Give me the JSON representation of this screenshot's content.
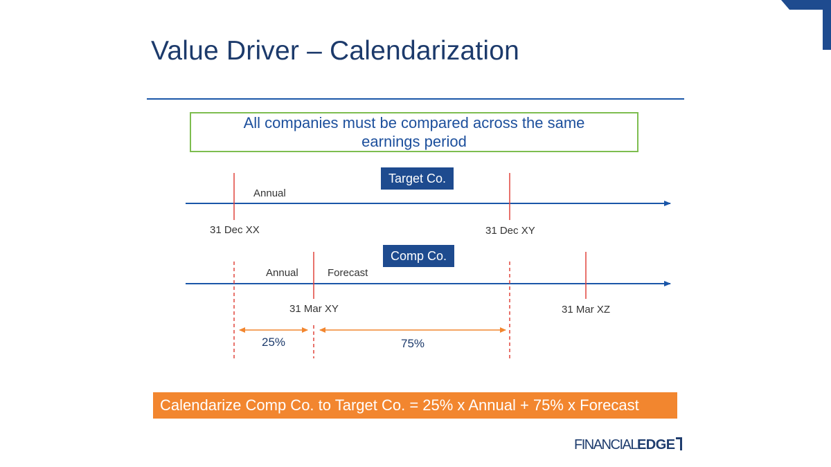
{
  "title": "Value Driver – Calendarization",
  "note": "All companies must be compared across the same earnings period",
  "target": {
    "badge": "Target Co.",
    "annual_label": "Annual",
    "start_date": "31 Dec XX",
    "end_date": "31 Dec XY"
  },
  "comp": {
    "badge": "Comp Co.",
    "annual_label": "Annual",
    "forecast_label": "Forecast",
    "fye_date": "31 Mar XY",
    "next_fye_date": "31 Mar XZ"
  },
  "split": {
    "annual_pct": "25%",
    "forecast_pct": "75%"
  },
  "formula": "Calendarize Comp Co. to Target Co. = 25% x Annual + 75% x Forecast",
  "logo": {
    "part1": "FINANCIAL",
    "part2": "EDGE"
  },
  "colors": {
    "title": "#1c3a6b",
    "timeline": "#1a56a8",
    "marker": "#e0433a",
    "arrow": "#f2862f",
    "badge": "#1e4b8f",
    "note_border": "#7dbd4f",
    "formula_bg": "#f2862f"
  }
}
